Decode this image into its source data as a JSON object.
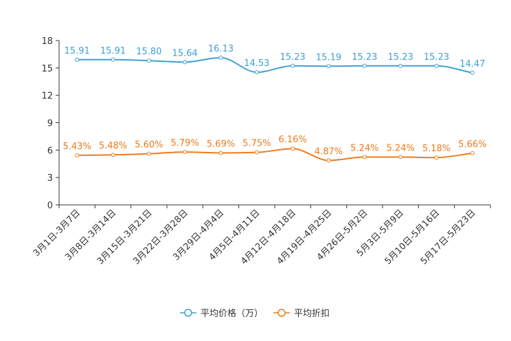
{
  "chart_data": {
    "type": "line",
    "title": "",
    "xlabel": "",
    "ylabel": "",
    "ylim": [
      0,
      18
    ],
    "yticks": [
      0,
      3,
      6,
      9,
      12,
      15,
      18
    ],
    "categories": [
      "3月1日-3月7日",
      "3月8日-3月14日",
      "3月15日-3月21日",
      "3月22日-3月28日",
      "3月29日-4月4日",
      "4月5日-4月11日",
      "4月12日-4月18日",
      "4月19日-4月25日",
      "4月26日-5月2日",
      "5月3日-5月9日",
      "5月10日-5月16日",
      "5月17日-5月23日"
    ],
    "series": [
      {
        "name": "平均价格（万）",
        "color": "#3ea0d5",
        "values": [
          15.91,
          15.91,
          15.8,
          15.64,
          16.13,
          14.53,
          15.23,
          15.19,
          15.23,
          15.23,
          15.23,
          14.47
        ],
        "labels": [
          "15.91",
          "15.91",
          "15.80",
          "15.64",
          "16.13",
          "14.53",
          "15.23",
          "15.19",
          "15.23",
          "15.23",
          "15.23",
          "14.47"
        ]
      },
      {
        "name": "平均折扣",
        "color": "#f07a1a",
        "values": [
          5.43,
          5.48,
          5.6,
          5.79,
          5.69,
          5.75,
          6.16,
          4.87,
          5.24,
          5.24,
          5.18,
          5.66
        ],
        "labels": [
          "5.43%",
          "5.48%",
          "5.60%",
          "5.79%",
          "5.69%",
          "5.75%",
          "6.16%",
          "4.87%",
          "5.24%",
          "5.24%",
          "5.18%",
          "5.66%"
        ]
      }
    ],
    "legend": "bottom-center",
    "grid": false
  }
}
